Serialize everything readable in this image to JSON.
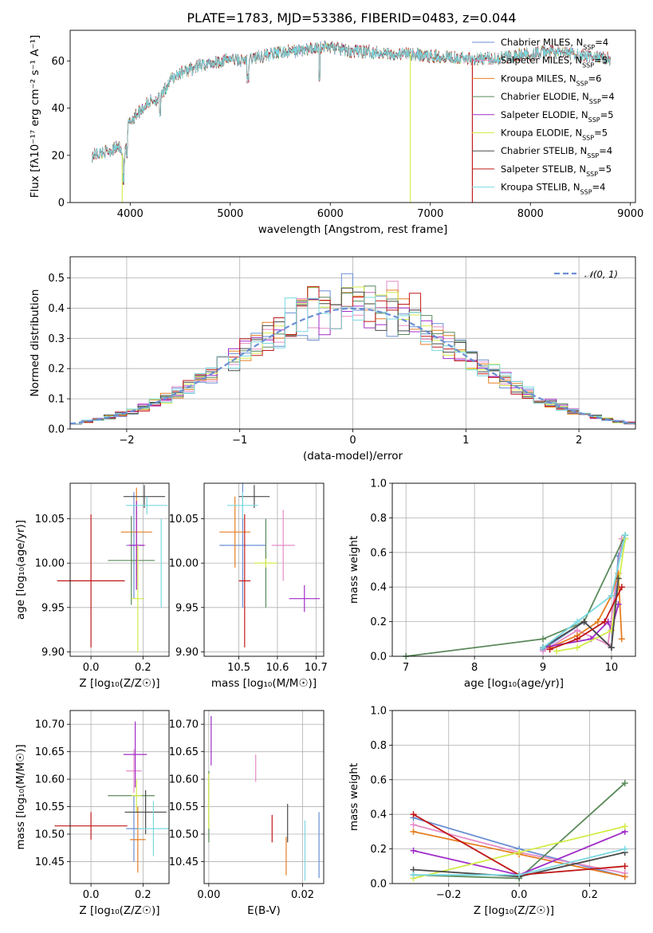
{
  "title": "PLATE=1783, MJD=53386, FIBERID=0483, z=0.044",
  "colors": {
    "chabrier_miles": "#6a8fd4",
    "salpeter_miles": "#e58bc8",
    "kroupa_miles": "#e67e22",
    "chabrier_elodie": "#5a8a5a",
    "salpeter_elodie": "#a02cc8",
    "kroupa_elodie": "#d4ec4a",
    "chabrier_stelib": "#4a4a4a",
    "salpeter_stelib": "#c01818",
    "kroupa_stelib": "#7ad9e0",
    "normal": "#6a8fd4",
    "grid": "#b0b0b0"
  },
  "models": [
    {
      "key": "chabrier_miles",
      "pre": "Chabrier MILES, N",
      "sub": "SSP",
      "post": "=4"
    },
    {
      "key": "salpeter_miles",
      "pre": "Salpeter MILES, N",
      "sub": "SSP",
      "post": "=5"
    },
    {
      "key": "kroupa_miles",
      "pre": "Kroupa MILES, N",
      "sub": "SSP",
      "post": "=6"
    },
    {
      "key": "chabrier_elodie",
      "pre": "Chabrier ELODIE, N",
      "sub": "SSP",
      "post": "=4"
    },
    {
      "key": "salpeter_elodie",
      "pre": "Salpeter ELODIE, N",
      "sub": "SSP",
      "post": "=5"
    },
    {
      "key": "kroupa_elodie",
      "pre": "Kroupa ELODIE, N",
      "sub": "SSP",
      "post": "=5"
    },
    {
      "key": "chabrier_stelib",
      "pre": "Chabrier STELIB, N",
      "sub": "SSP",
      "post": "=4"
    },
    {
      "key": "salpeter_stelib",
      "pre": "Salpeter STELIB, N",
      "sub": "SSP",
      "post": "=5"
    },
    {
      "key": "kroupa_stelib",
      "pre": "Kroupa STELIB, N",
      "sub": "SSP",
      "post": "=4"
    }
  ],
  "chart_data": [
    {
      "id": "spectrum",
      "type": "line",
      "xlabel": "wavelength [Angstrom, rest frame]",
      "ylabel": "Flux [fλ10⁻¹⁷ erg cm⁻² s⁻¹ A⁻¹]",
      "xlim": [
        3400,
        9050
      ],
      "ylim": [
        0,
        73
      ],
      "xticks": [
        4000,
        5000,
        6000,
        7000,
        8000,
        9000
      ],
      "yticks": [
        0,
        20,
        40,
        60
      ],
      "legend": "top-right",
      "grid": false,
      "wavelength_range": [
        3620,
        8800
      ],
      "approx_continuum": {
        "x": [
          3620,
          3700,
          3800,
          3900,
          3940,
          3980,
          4050,
          4200,
          4300,
          4400,
          4500,
          4700,
          4900,
          5000,
          5100,
          5200,
          5400,
          5600,
          5800,
          5900,
          6000,
          6200,
          6400,
          6600,
          6800,
          7000,
          7200,
          7400,
          7600,
          7800,
          8000,
          8200,
          8400,
          8600,
          8800
        ],
        "y": [
          20,
          21,
          22,
          24,
          17,
          33,
          37,
          43,
          44,
          52,
          55,
          58,
          60,
          61,
          60,
          61,
          63,
          64,
          65,
          66,
          66,
          64,
          64,
          63,
          63,
          62,
          62,
          61,
          61,
          62,
          63,
          64,
          63,
          62,
          61
        ]
      }
    },
    {
      "id": "residuals",
      "type": "line",
      "xlabel": "(data-model)/error",
      "ylabel": "Normed distribution",
      "xlim": [
        -2.5,
        2.5
      ],
      "ylim": [
        0,
        0.57
      ],
      "xticks": [
        -2,
        -1,
        0,
        1,
        2
      ],
      "yticks": [
        0.0,
        0.1,
        0.2,
        0.3,
        0.4,
        0.5
      ],
      "grid": true,
      "legend": "top-right",
      "legend_label": "𝒩(0, 1)",
      "normal_mean": 0,
      "normal_sigma": 1
    },
    {
      "id": "z-age",
      "type": "scatter",
      "xlabel": "Z [log₁₀(Z/Z☉)]",
      "ylabel": "age  [log₁₀(age/yr)]",
      "xlim": [
        -0.08,
        0.3
      ],
      "ylim": [
        9.895,
        10.09
      ],
      "xticks": [
        0.0,
        0.2
      ],
      "yticks": [
        9.9,
        9.95,
        10.0,
        10.05
      ],
      "grid": true,
      "points": [
        {
          "series": "chabrier_miles",
          "x": 0.165,
          "xerr": 0.03,
          "y": 10.02,
          "yerr": 0.06
        },
        {
          "series": "salpeter_miles",
          "x": 0.175,
          "xerr": 0.035,
          "y": 10.02,
          "yerr": 0.05
        },
        {
          "series": "kroupa_miles",
          "x": 0.175,
          "xerr": 0.06,
          "y": 10.035,
          "yerr": 0.05
        },
        {
          "series": "chabrier_elodie",
          "x": 0.155,
          "xerr": 0.09,
          "y": 10.003,
          "yerr": 0.05
        },
        {
          "series": "salpeter_elodie",
          "x": 0.175,
          "xerr": 0.03,
          "y": 10.02,
          "yerr": 0.05
        },
        {
          "series": "kroupa_elodie",
          "x": 0.18,
          "xerr": 0.025,
          "y": 9.96,
          "yerr": 0.06
        },
        {
          "series": "chabrier_stelib",
          "x": 0.205,
          "xerr": 0.08,
          "y": 10.075,
          "yerr": 0.013
        },
        {
          "series": "salpeter_stelib",
          "x": 0.0,
          "xerr": 0.13,
          "y": 9.98,
          "yerr": 0.075
        },
        {
          "series": "kroupa_stelib",
          "x": 0.215,
          "xerr": 0.08,
          "y": 10.065,
          "yerr": 0.01
        },
        {
          "series": "kroupa_stelib",
          "x": 0.27,
          "xerr": 0.0,
          "y": 10.0,
          "yerr": 0.05
        }
      ]
    },
    {
      "id": "mass-age",
      "type": "scatter",
      "xlabel": "mass [log₁₀(M/M☉)]",
      "ylabel": "",
      "xlim": [
        10.41,
        10.72
      ],
      "ylim": [
        9.895,
        10.09
      ],
      "xticks": [
        10.5,
        10.6,
        10.7
      ],
      "yticks": [
        9.9,
        9.95,
        10.0,
        10.05
      ],
      "grid": true,
      "points": [
        {
          "series": "chabrier_miles",
          "x": 10.51,
          "xerr": 0.06,
          "y": 10.02,
          "yerr": 0.07
        },
        {
          "series": "salpeter_miles",
          "x": 10.615,
          "xerr": 0.03,
          "y": 10.02,
          "yerr": 0.04
        },
        {
          "series": "kroupa_miles",
          "x": 10.49,
          "xerr": 0.04,
          "y": 10.035,
          "yerr": 0.04
        },
        {
          "series": "chabrier_elodie",
          "x": 10.57,
          "xerr": 0.0,
          "y": 10.0,
          "yerr": 0.05
        },
        {
          "series": "salpeter_elodie",
          "x": 10.67,
          "xerr": 0.04,
          "y": 9.96,
          "yerr": 0.015
        },
        {
          "series": "kroupa_elodie",
          "x": 10.57,
          "xerr": 0.03,
          "y": 10.0,
          "yerr": 0.005
        },
        {
          "series": "chabrier_stelib",
          "x": 10.54,
          "xerr": 0.04,
          "y": 10.075,
          "yerr": 0.013
        },
        {
          "series": "salpeter_stelib",
          "x": 10.515,
          "xerr": 0.015,
          "y": 9.98,
          "yerr": 0.075
        },
        {
          "series": "kroupa_stelib",
          "x": 10.51,
          "xerr": 0.04,
          "y": 10.065,
          "yerr": 0.015
        }
      ]
    },
    {
      "id": "age-weight",
      "type": "line",
      "xlabel": "age  [log₁₀(age/yr)]",
      "ylabel": "mass weight",
      "xlim": [
        6.8,
        10.35
      ],
      "ylim": [
        0,
        1.0
      ],
      "xticks": [
        7,
        8,
        9,
        10
      ],
      "yticks": [
        0.0,
        0.2,
        0.4,
        0.6,
        0.8,
        1.0
      ],
      "grid": true,
      "series": [
        {
          "series": "chabrier_miles",
          "x": [
            9.0,
            9.6,
            10.0,
            10.1,
            10.2
          ],
          "y": [
            0.04,
            0.2,
            0.05,
            0.58,
            0.68
          ]
        },
        {
          "series": "salpeter_miles",
          "x": [
            9.0,
            9.5,
            9.95,
            10.15
          ],
          "y": [
            0.03,
            0.15,
            0.07,
            0.68
          ]
        },
        {
          "series": "kroupa_miles",
          "x": [
            9.1,
            9.5,
            9.8,
            10.0,
            10.1,
            10.15
          ],
          "y": [
            0.05,
            0.12,
            0.2,
            0.35,
            0.48,
            0.1
          ]
        },
        {
          "series": "chabrier_elodie",
          "x": [
            7.0,
            9.0,
            9.6,
            10.2
          ],
          "y": [
            0.0,
            0.1,
            0.2,
            0.7
          ]
        },
        {
          "series": "salpeter_elodie",
          "x": [
            9.0,
            9.7,
            9.95,
            10.0,
            10.1
          ],
          "y": [
            0.05,
            0.1,
            0.2,
            0.15,
            0.3
          ]
        },
        {
          "series": "kroupa_elodie",
          "x": [
            9.2,
            9.5,
            10.0,
            10.2
          ],
          "y": [
            0.03,
            0.05,
            0.15,
            0.68
          ]
        },
        {
          "series": "chabrier_stelib",
          "x": [
            9.0,
            9.6,
            10.0,
            10.1
          ],
          "y": [
            0.05,
            0.2,
            0.05,
            0.45
          ]
        },
        {
          "series": "salpeter_stelib",
          "x": [
            9.1,
            9.5,
            9.9,
            10.15
          ],
          "y": [
            0.04,
            0.1,
            0.2,
            0.4
          ]
        },
        {
          "series": "kroupa_stelib",
          "x": [
            9.0,
            9.5,
            10.0,
            10.2
          ],
          "y": [
            0.05,
            0.2,
            0.35,
            0.7
          ]
        }
      ]
    },
    {
      "id": "z-mass",
      "type": "scatter",
      "xlabel": "Z [log₁₀(Z/Z☉)]",
      "ylabel": "mass [log₁₀(M/M☉)]",
      "xlim": [
        -0.08,
        0.3
      ],
      "ylim": [
        10.41,
        10.725
      ],
      "xticks": [
        0.0,
        0.2
      ],
      "yticks": [
        10.45,
        10.5,
        10.55,
        10.6,
        10.65,
        10.7
      ],
      "grid": true,
      "points": [
        {
          "series": "chabrier_miles",
          "x": 0.165,
          "xerr": 0.03,
          "y": 10.51,
          "yerr": 0.06
        },
        {
          "series": "salpeter_miles",
          "x": 0.165,
          "xerr": 0.03,
          "y": 10.615,
          "yerr": 0.04
        },
        {
          "series": "kroupa_miles",
          "x": 0.18,
          "xerr": 0.03,
          "y": 10.49,
          "yerr": 0.06
        },
        {
          "series": "chabrier_elodie",
          "x": 0.155,
          "xerr": 0.09,
          "y": 10.57,
          "yerr": 0.0
        },
        {
          "series": "salpeter_elodie",
          "x": 0.17,
          "xerr": 0.045,
          "y": 10.645,
          "yerr": 0.06
        },
        {
          "series": "kroupa_elodie",
          "x": 0.175,
          "xerr": 0.02,
          "y": 10.57,
          "yerr": 0.03
        },
        {
          "series": "chabrier_stelib",
          "x": 0.21,
          "xerr": 0.08,
          "y": 10.54,
          "yerr": 0.04
        },
        {
          "series": "salpeter_stelib",
          "x": 0.0,
          "xerr": 0.14,
          "y": 10.515,
          "yerr": 0.025
        },
        {
          "series": "kroupa_stelib",
          "x": 0.24,
          "xerr": 0.06,
          "y": 10.51,
          "yerr": 0.05
        }
      ]
    },
    {
      "id": "ebv-mass",
      "type": "scatter",
      "xlabel": "E(B-V)",
      "ylabel": "",
      "xlim": [
        -0.001,
        0.0245
      ],
      "ylim": [
        10.41,
        10.725
      ],
      "xticks": [
        0.0,
        0.02
      ],
      "yticks": [
        10.45,
        10.5,
        10.55,
        10.6,
        10.65,
        10.7
      ],
      "grid": true,
      "points": [
        {
          "series": "chabrier_miles",
          "x": 0.0235,
          "xerr": 0,
          "y": 10.48,
          "yerr": 0.06
        },
        {
          "series": "salpeter_miles",
          "x": 0.01,
          "xerr": 0,
          "y": 10.62,
          "yerr": 0.025
        },
        {
          "series": "kroupa_miles",
          "x": 0.0165,
          "xerr": 0,
          "y": 10.46,
          "yerr": 0.035
        },
        {
          "series": "chabrier_elodie",
          "x": 0.0,
          "xerr": 0,
          "y": 10.55,
          "yerr": 0.065
        },
        {
          "series": "salpeter_elodie",
          "x": 0.0005,
          "xerr": 0,
          "y": 10.67,
          "yerr": 0.045
        },
        {
          "series": "kroupa_elodie",
          "x": 0.0,
          "xerr": 0,
          "y": 10.56,
          "yerr": 0.05
        },
        {
          "series": "chabrier_stelib",
          "x": 0.0168,
          "xerr": 0,
          "y": 10.52,
          "yerr": 0.035
        },
        {
          "series": "salpeter_stelib",
          "x": 0.0135,
          "xerr": 0,
          "y": 10.51,
          "yerr": 0.025
        },
        {
          "series": "kroupa_stelib",
          "x": 0.0205,
          "xerr": 0,
          "y": 10.47,
          "yerr": 0.055
        }
      ]
    },
    {
      "id": "z-weight",
      "type": "line",
      "xlabel": "Z [log₁₀(Z/Z☉)]",
      "ylabel": "mass weight",
      "xlim": [
        -0.36,
        0.33
      ],
      "ylim": [
        0,
        1.0
      ],
      "xticks": [
        -0.2,
        0.0,
        0.2
      ],
      "yticks": [
        0.0,
        0.2,
        0.4,
        0.6,
        0.8,
        1.0
      ],
      "grid": true,
      "series": [
        {
          "series": "chabrier_miles",
          "x": [
            -0.3,
            0.0,
            0.3
          ],
          "y": [
            0.38,
            0.2,
            0.04
          ]
        },
        {
          "series": "salpeter_miles",
          "x": [
            -0.3,
            0.0,
            0.3
          ],
          "y": [
            0.34,
            0.18,
            0.06
          ]
        },
        {
          "series": "kroupa_miles",
          "x": [
            -0.3,
            0.0,
            0.3
          ],
          "y": [
            0.3,
            0.17,
            0.04
          ]
        },
        {
          "series": "chabrier_elodie",
          "x": [
            -0.3,
            0.0,
            0.3
          ],
          "y": [
            0.05,
            0.03,
            0.58
          ]
        },
        {
          "series": "salpeter_elodie",
          "x": [
            -0.3,
            0.0,
            0.3
          ],
          "y": [
            0.19,
            0.05,
            0.3
          ]
        },
        {
          "series": "kroupa_elodie",
          "x": [
            -0.3,
            0.0,
            0.3
          ],
          "y": [
            0.03,
            0.18,
            0.33
          ]
        },
        {
          "series": "chabrier_stelib",
          "x": [
            -0.3,
            0.0,
            0.3
          ],
          "y": [
            0.08,
            0.04,
            0.18
          ]
        },
        {
          "series": "salpeter_stelib",
          "x": [
            -0.3,
            0.0,
            0.3
          ],
          "y": [
            0.4,
            0.05,
            0.1
          ]
        },
        {
          "series": "kroupa_stelib",
          "x": [
            -0.3,
            0.0,
            0.3
          ],
          "y": [
            0.05,
            0.05,
            0.2
          ]
        }
      ]
    }
  ]
}
